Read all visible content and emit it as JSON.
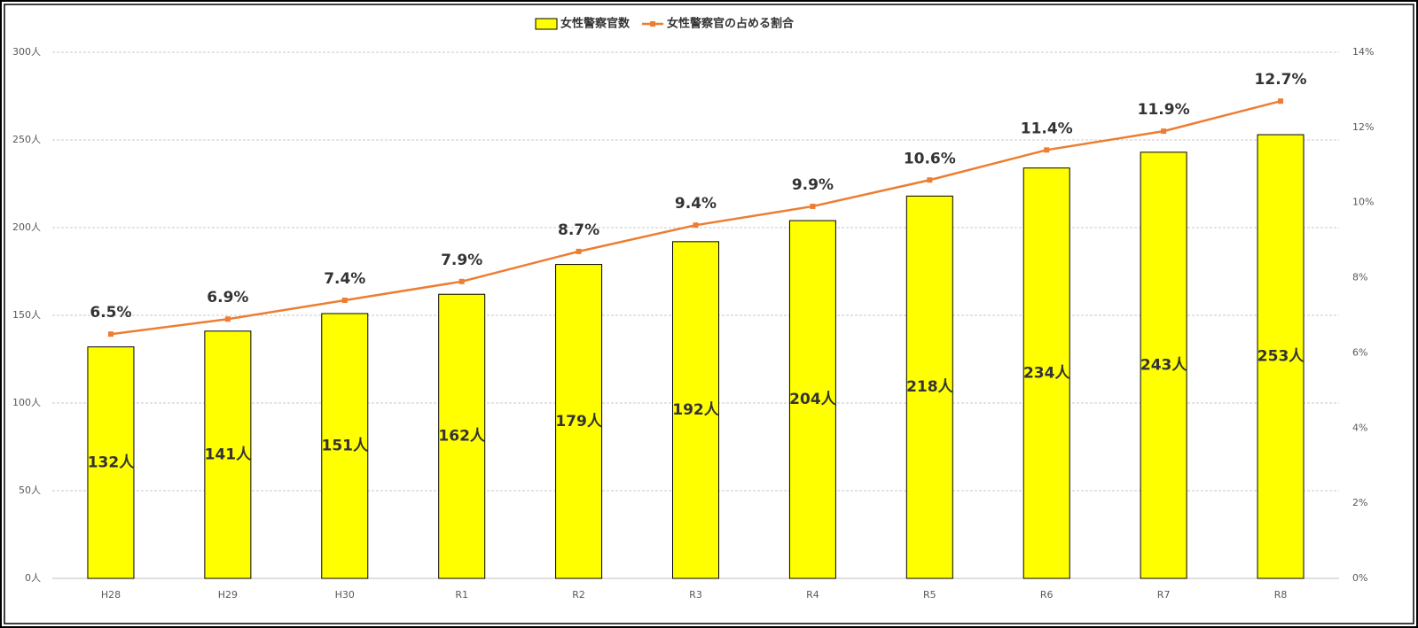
{
  "chart_data": {
    "type": "bar-line",
    "categories": [
      "H28",
      "H29",
      "H30",
      "R1",
      "R2",
      "R3",
      "R4",
      "R5",
      "R6",
      "R7",
      "R8"
    ],
    "series": [
      {
        "name": "女性警察官数",
        "type": "bar",
        "color": "#ffff00",
        "values": [
          132,
          141,
          151,
          162,
          179,
          192,
          204,
          218,
          234,
          243,
          253
        ],
        "value_labels": [
          "132人",
          "141人",
          "151人",
          "162人",
          "179人",
          "192人",
          "204人",
          "218人",
          "234人",
          "243人",
          "253人"
        ]
      },
      {
        "name": "女性警察官の占める割合",
        "type": "line",
        "axis": "y2",
        "color": "#ed7d31",
        "values": [
          6.5,
          6.9,
          7.4,
          7.9,
          8.7,
          9.4,
          9.9,
          10.6,
          11.4,
          11.9,
          12.7
        ],
        "value_labels": [
          "6.5%",
          "6.9%",
          "7.4%",
          "7.9%",
          "8.7%",
          "9.4%",
          "9.9%",
          "10.6%",
          "11.4%",
          "11.9%",
          "12.7%"
        ]
      }
    ],
    "ylim": [
      0,
      300
    ],
    "yticks": [
      {
        "value": 0,
        "label": "0人"
      },
      {
        "value": 50,
        "label": "50人"
      },
      {
        "value": 100,
        "label": "100人"
      },
      {
        "value": 150,
        "label": "150人"
      },
      {
        "value": 200,
        "label": "200人"
      },
      {
        "value": 250,
        "label": "250人"
      },
      {
        "value": 300,
        "label": "300人"
      }
    ],
    "y2lim": [
      0,
      14
    ],
    "y2ticks": [
      {
        "value": 0,
        "label": "0%"
      },
      {
        "value": 2,
        "label": "2%"
      },
      {
        "value": 4,
        "label": "4%"
      },
      {
        "value": 6,
        "label": "6%"
      },
      {
        "value": 8,
        "label": "8%"
      },
      {
        "value": 10,
        "label": "10%"
      },
      {
        "value": 12,
        "label": "12%"
      },
      {
        "value": 14,
        "label": "14%"
      }
    ],
    "grid": true,
    "legend": "top"
  }
}
